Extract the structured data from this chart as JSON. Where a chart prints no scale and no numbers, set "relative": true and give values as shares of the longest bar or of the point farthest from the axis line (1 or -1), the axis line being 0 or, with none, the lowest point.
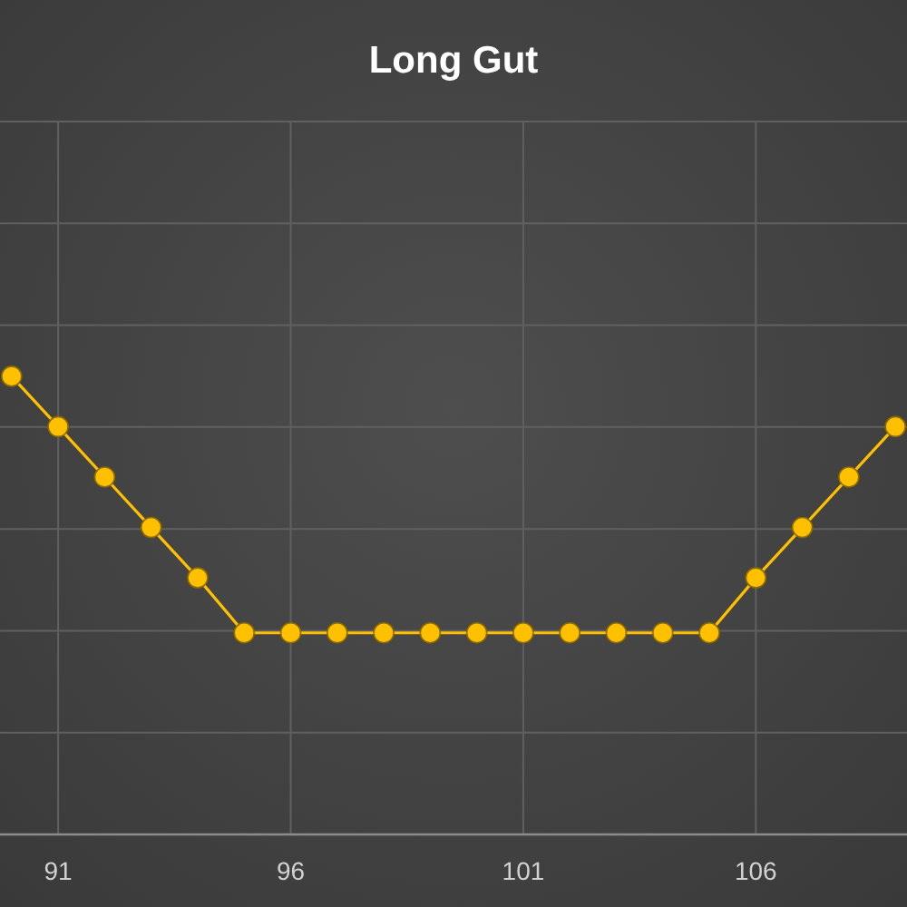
{
  "chart_data": {
    "type": "line",
    "title": "Long Gut",
    "x": [
      90,
      91,
      92,
      93,
      94,
      95,
      96,
      97,
      98,
      99,
      100,
      101,
      102,
      103,
      104,
      105,
      106,
      107,
      108,
      109
    ],
    "series": [
      {
        "color": "#ffc000",
        "values": [
          1,
          0.89,
          0.78,
          0.67,
          0.56,
          0.44,
          0.44,
          0.44,
          0.44,
          0.44,
          0.44,
          0.44,
          0.44,
          0.44,
          0.44,
          0.44,
          0.56,
          0.67,
          0.78,
          0.89
        ]
      }
    ],
    "relative": true,
    "xlim": [
      89.75,
      109.25
    ],
    "xticks": [
      91,
      96,
      101,
      106
    ],
    "grid": true,
    "marker": "circle",
    "line_style": "solid"
  }
}
